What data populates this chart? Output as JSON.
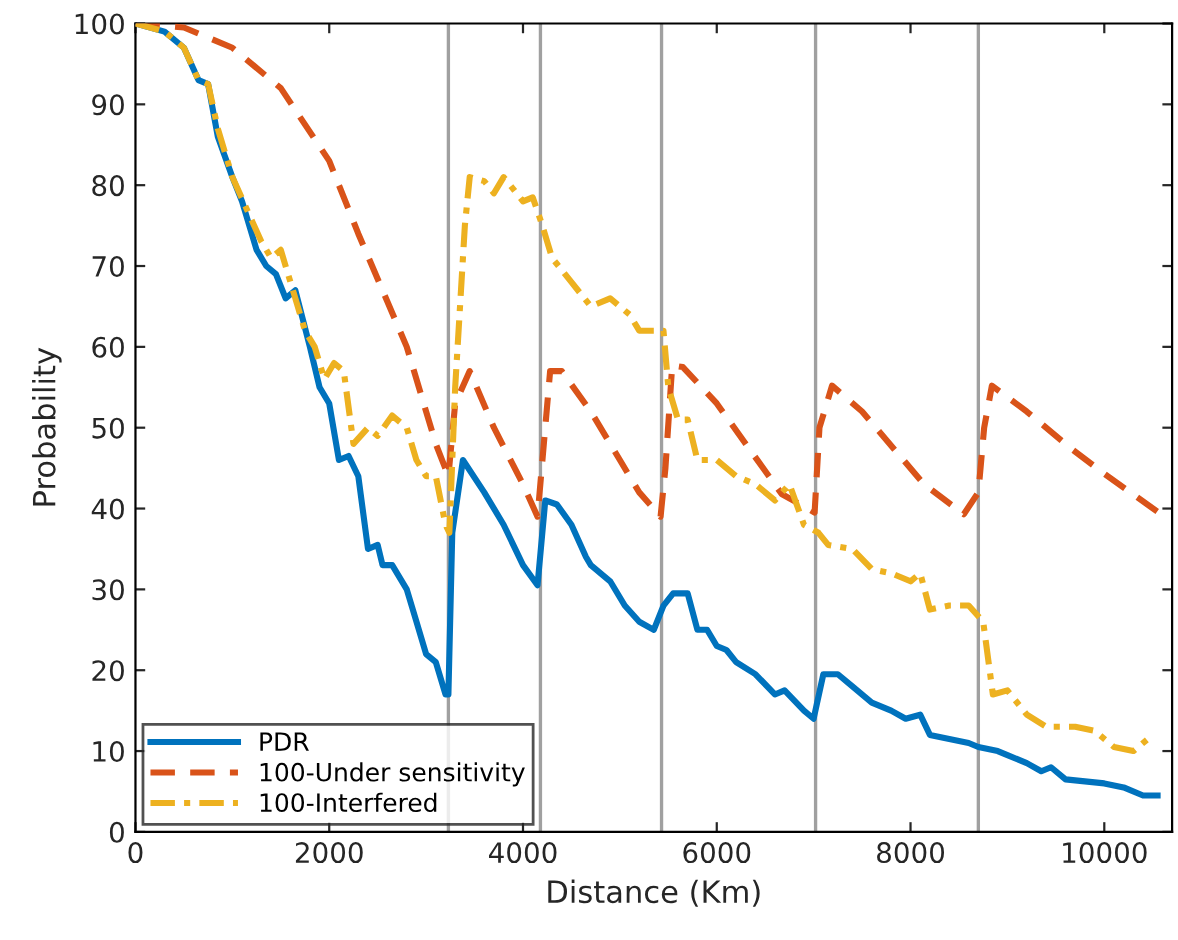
{
  "chart_data": {
    "type": "line",
    "xlabel": "Distance (Km)",
    "ylabel": "Probability",
    "xlim": [
      0,
      10700
    ],
    "ylim": [
      0,
      100
    ],
    "xticks": [
      0,
      2000,
      4000,
      6000,
      8000,
      10000
    ],
    "yticks": [
      0,
      10,
      20,
      30,
      40,
      50,
      60,
      70,
      80,
      90,
      100
    ],
    "grid": false,
    "legend": "bottom left",
    "ref_lines": [
      {
        "axis": "x",
        "value": 3230,
        "color": "#a0a0a0"
      },
      {
        "axis": "x",
        "value": 4180,
        "color": "#a0a0a0"
      },
      {
        "axis": "x",
        "value": 5430,
        "color": "#a0a0a0"
      },
      {
        "axis": "x",
        "value": 7020,
        "color": "#a0a0a0"
      },
      {
        "axis": "x",
        "value": 8700,
        "color": "#a0a0a0"
      }
    ],
    "series": [
      {
        "name": "PDR",
        "color": "#0072bd",
        "line_style": "solid",
        "x": [
          0,
          300,
          500,
          650,
          750,
          850,
          1000,
          1100,
          1250,
          1350,
          1450,
          1550,
          1650,
          1800,
          1900,
          2000,
          2100,
          2200,
          2300,
          2400,
          2500,
          2550,
          2650,
          2800,
          2900,
          3000,
          3100,
          3200,
          3230,
          3270,
          3380,
          3600,
          3800,
          4000,
          4150,
          4230,
          4350,
          4500,
          4650,
          4700,
          4900,
          5050,
          5200,
          5350,
          5450,
          5550,
          5700,
          5800,
          5900,
          6000,
          6100,
          6200,
          6400,
          6600,
          6700,
          6900,
          7000,
          7100,
          7250,
          7400,
          7600,
          7800,
          7950,
          8100,
          8200,
          8400,
          8600,
          8700,
          8900,
          9000,
          9200,
          9350,
          9450,
          9600,
          10000,
          10200,
          10400,
          10550
        ],
        "values": [
          100,
          99,
          97,
          93,
          92.5,
          86,
          81,
          78,
          72,
          70,
          69,
          66,
          67,
          60,
          55,
          53,
          46,
          46.5,
          44,
          35,
          35.5,
          33,
          33,
          30,
          26,
          22,
          21,
          17,
          17,
          37,
          46,
          42,
          38,
          33,
          30.5,
          41,
          40.5,
          38,
          34,
          33,
          31,
          28,
          26,
          25,
          28,
          29.5,
          29.5,
          25,
          25,
          23,
          22.5,
          21,
          19.5,
          17,
          17.5,
          15,
          14,
          19.5,
          19.5,
          18,
          16,
          15,
          14,
          14.5,
          12,
          11.5,
          11,
          10.5,
          10,
          9.5,
          8.5,
          7.5,
          8,
          6.5,
          6,
          5.5,
          4.5,
          4.5
        ]
      },
      {
        "name": "100-Under sensitivity",
        "color": "#d95319",
        "line_style": "dashed",
        "x": [
          0,
          500,
          1000,
          1500,
          2000,
          2300,
          2800,
          3100,
          3230,
          3300,
          3450,
          3700,
          4000,
          4150,
          4280,
          4400,
          4700,
          5000,
          5200,
          5420,
          5470,
          5540,
          5650,
          6000,
          6670,
          7010,
          7060,
          7190,
          7500,
          8140,
          8550,
          8700,
          8760,
          8840,
          9200,
          9670,
          10000,
          10620
        ],
        "values": [
          100,
          99.5,
          97,
          92,
          83,
          74,
          60,
          48,
          44,
          53,
          57,
          50,
          43,
          39,
          57,
          57,
          52,
          46,
          42,
          39,
          45,
          57.7,
          57.5,
          53,
          41.8,
          39.5,
          50,
          55.2,
          52,
          43,
          39.3,
          42,
          50,
          55.2,
          52,
          47.3,
          44.3,
          39
        ]
      },
      {
        "name": "100-Interfered",
        "color": "#edb120",
        "line_style": "dashdot",
        "x": [
          0,
          300,
          500,
          650,
          750,
          850,
          1000,
          1150,
          1300,
          1400,
          1500,
          1600,
          1750,
          1850,
          1950,
          2050,
          2150,
          2250,
          2400,
          2500,
          2650,
          2800,
          2900,
          3000,
          3100,
          3200,
          3240,
          3300,
          3400,
          3450,
          3600,
          3700,
          3800,
          4000,
          4100,
          4200,
          4300,
          4500,
          4700,
          4900,
          5100,
          5200,
          5450,
          5500,
          5600,
          5700,
          5800,
          6000,
          6200,
          6400,
          6600,
          6750,
          6900,
          7050,
          7150,
          7400,
          7600,
          7800,
          8000,
          8100,
          8200,
          8400,
          8600,
          8750,
          8850,
          9000,
          9200,
          9400,
          9700,
          9900,
          10100,
          10300,
          10500
        ],
        "values": [
          100,
          99,
          97,
          93,
          92.5,
          87,
          81,
          77,
          73,
          71,
          72,
          68,
          62,
          60,
          56,
          58,
          57,
          48,
          50,
          49,
          51.5,
          50,
          46,
          44,
          44,
          38,
          37,
          55,
          75,
          81,
          80.5,
          79,
          81,
          78,
          78.5,
          75,
          71,
          68,
          65,
          66,
          64,
          62,
          62,
          55,
          51,
          51,
          46,
          46,
          44,
          43,
          41,
          43,
          38,
          37,
          35.5,
          35,
          32.5,
          32,
          31,
          32,
          27.5,
          28,
          28,
          26,
          17,
          17.5,
          14.5,
          13,
          13,
          12.5,
          10.5,
          10,
          12
        ]
      }
    ]
  }
}
